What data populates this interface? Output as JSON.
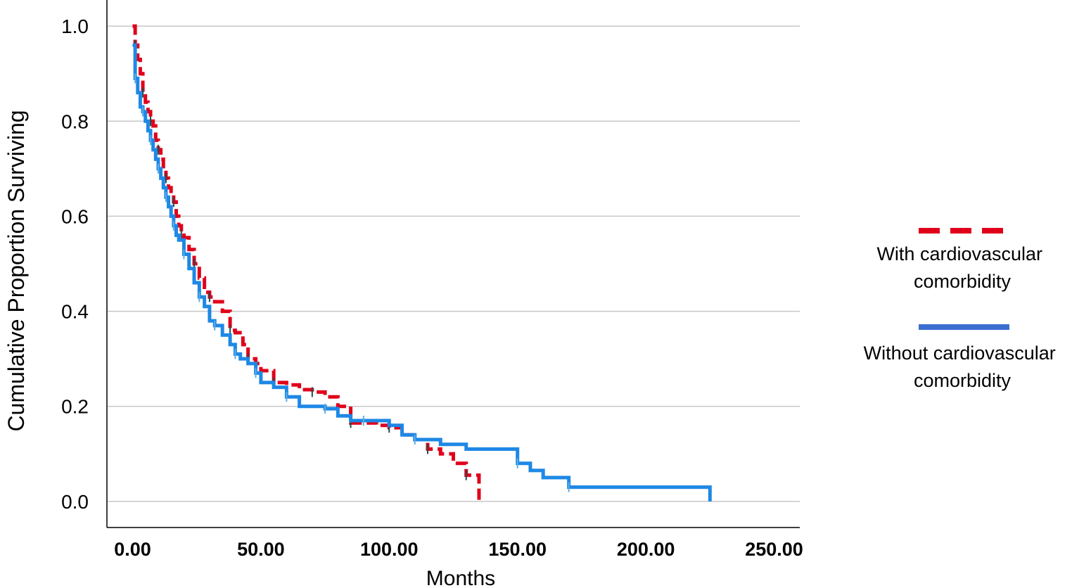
{
  "chart_data": {
    "type": "line",
    "subtype": "kaplan-meier step",
    "xlabel": "Months",
    "ylabel": "Cumulative Proportion Surviving",
    "xlim": [
      -10,
      260
    ],
    "ylim": [
      -0.055,
      1.055
    ],
    "x_ticks": [
      "0.00",
      "50.00",
      "100.00",
      "150.00",
      "200.00",
      "250.00"
    ],
    "y_ticks": [
      "0.0",
      "0.2",
      "0.4",
      "0.6",
      "0.8",
      "1.0"
    ],
    "grid": "horizontal",
    "legend_position": "right",
    "series": [
      {
        "name": "With cardiovascular comorbidity",
        "color": "#e0001a",
        "style": "dashed",
        "x": [
          0,
          1,
          2,
          3,
          4,
          5,
          6,
          7,
          8,
          9,
          10,
          11,
          12,
          13,
          14,
          15,
          16,
          17,
          18,
          19,
          20,
          22,
          24,
          26,
          28,
          30,
          32,
          35,
          38,
          40,
          43,
          45,
          48,
          50,
          55,
          60,
          65,
          70,
          75,
          80,
          85,
          90,
          95,
          100,
          105,
          110,
          115,
          120,
          125,
          130,
          135
        ],
        "y": [
          1.0,
          0.96,
          0.93,
          0.9,
          0.86,
          0.84,
          0.82,
          0.8,
          0.79,
          0.76,
          0.74,
          0.72,
          0.7,
          0.68,
          0.66,
          0.645,
          0.63,
          0.6,
          0.58,
          0.56,
          0.555,
          0.53,
          0.5,
          0.47,
          0.44,
          0.43,
          0.42,
          0.4,
          0.36,
          0.355,
          0.33,
          0.3,
          0.29,
          0.275,
          0.25,
          0.245,
          0.235,
          0.23,
          0.22,
          0.2,
          0.165,
          0.165,
          0.16,
          0.155,
          0.14,
          0.13,
          0.11,
          0.1,
          0.08,
          0.055,
          0.0
        ]
      },
      {
        "name": "Without cardiovascular comorbidity",
        "color": "#1e88e5",
        "style": "solid",
        "x": [
          0,
          1,
          2,
          3,
          4,
          5,
          6,
          7,
          8,
          9,
          10,
          11,
          12,
          13,
          14,
          15,
          16,
          17,
          18,
          20,
          22,
          24,
          26,
          28,
          30,
          32,
          35,
          38,
          40,
          42,
          45,
          48,
          50,
          55,
          60,
          65,
          70,
          75,
          80,
          85,
          90,
          100,
          105,
          110,
          120,
          130,
          150,
          155,
          160,
          170,
          200,
          225
        ],
        "y": [
          0.96,
          0.89,
          0.86,
          0.83,
          0.82,
          0.8,
          0.78,
          0.76,
          0.74,
          0.72,
          0.7,
          0.68,
          0.66,
          0.64,
          0.62,
          0.6,
          0.58,
          0.56,
          0.55,
          0.52,
          0.49,
          0.46,
          0.43,
          0.41,
          0.38,
          0.37,
          0.35,
          0.33,
          0.31,
          0.3,
          0.29,
          0.27,
          0.25,
          0.24,
          0.22,
          0.2,
          0.2,
          0.195,
          0.18,
          0.17,
          0.17,
          0.16,
          0.14,
          0.13,
          0.12,
          0.11,
          0.08,
          0.065,
          0.05,
          0.03,
          0.03,
          0.0
        ]
      }
    ]
  }
}
